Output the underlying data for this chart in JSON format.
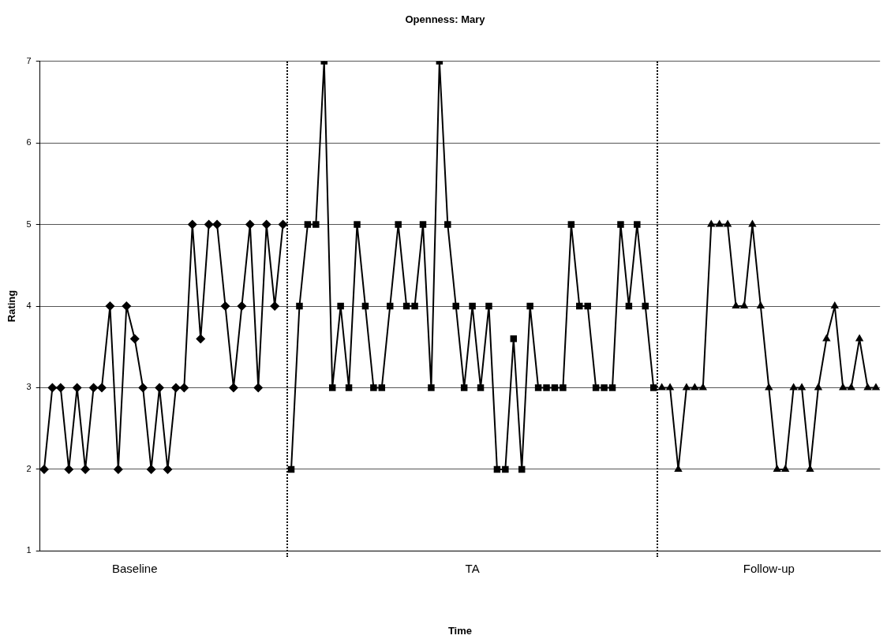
{
  "chart_data": {
    "type": "line",
    "title": "Openness: Mary",
    "xlabel": "Time",
    "ylabel": "Rating",
    "categories": [
      null,
      null,
      null,
      null,
      null,
      null,
      null,
      null,
      null,
      null,
      null,
      "Baseline",
      null,
      null,
      null,
      null,
      null,
      null,
      null,
      null,
      null,
      null,
      null,
      null,
      null,
      null,
      null,
      null,
      null,
      null,
      null,
      null,
      null,
      null,
      null,
      null,
      null,
      null,
      null,
      null,
      null,
      null,
      null,
      null,
      null,
      null,
      null,
      null,
      null,
      null,
      null,
      null,
      "TA",
      null,
      null,
      null,
      null,
      null,
      null,
      null,
      null,
      null,
      null,
      null,
      null,
      null,
      null,
      null,
      null,
      null,
      null,
      null,
      null,
      null,
      null,
      null,
      null,
      null,
      null,
      null,
      null,
      null,
      null,
      null,
      null,
      null,
      null,
      null,
      "Follow-up",
      null,
      null,
      null,
      null,
      null,
      null,
      null,
      null,
      null,
      null,
      null,
      null,
      null
    ],
    "ylim": [
      1,
      7
    ],
    "yticks": [
      1,
      2,
      3,
      4,
      5,
      6,
      7
    ],
    "grid": "y",
    "legend": false,
    "line_style": "solid",
    "series": [
      {
        "color": "#000000",
        "marker": "diamond",
        "values": [
          2,
          3,
          3,
          2,
          3,
          2,
          3,
          3,
          4,
          2,
          4,
          3.6,
          3,
          2,
          3,
          2,
          3,
          3,
          5,
          3.6,
          5,
          5,
          4,
          3,
          4,
          5,
          3,
          5,
          4,
          5,
          null,
          null,
          null,
          null,
          null,
          null,
          null,
          null,
          null,
          null,
          null,
          null,
          null,
          null,
          null,
          null,
          null,
          null,
          null,
          null,
          null,
          null,
          null,
          null,
          null,
          null,
          null,
          null,
          null,
          null,
          null,
          null,
          null,
          null,
          null,
          null,
          null,
          null,
          null,
          null,
          null,
          null,
          null,
          null,
          null,
          null,
          null,
          null,
          null,
          null,
          null,
          null,
          null,
          null,
          null,
          null,
          null,
          null,
          null,
          null,
          null,
          null,
          null,
          null,
          null,
          null,
          null,
          null,
          null,
          null,
          null,
          null
        ]
      },
      {
        "color": "#000000",
        "marker": "square",
        "values": [
          null,
          null,
          null,
          null,
          null,
          null,
          null,
          null,
          null,
          null,
          null,
          null,
          null,
          null,
          null,
          null,
          null,
          null,
          null,
          null,
          null,
          null,
          null,
          null,
          null,
          null,
          null,
          null,
          null,
          null,
          2,
          4,
          5,
          5,
          7,
          3,
          4,
          3,
          5,
          4,
          3,
          3,
          4,
          5,
          4,
          4,
          5,
          3,
          7,
          5,
          4,
          3,
          4,
          3,
          4,
          2,
          2,
          3.6,
          2,
          4,
          3,
          3,
          3,
          3,
          5,
          4,
          4,
          3,
          3,
          3,
          5,
          4,
          5,
          4,
          3,
          null,
          null,
          null,
          null,
          null,
          null,
          null,
          null,
          null,
          null,
          null,
          null,
          null,
          null,
          null,
          null,
          null,
          null,
          null,
          null,
          null,
          null,
          null,
          null,
          null,
          null,
          null
        ]
      },
      {
        "color": "#000000",
        "marker": "triangle",
        "values": [
          null,
          null,
          null,
          null,
          null,
          null,
          null,
          null,
          null,
          null,
          null,
          null,
          null,
          null,
          null,
          null,
          null,
          null,
          null,
          null,
          null,
          null,
          null,
          null,
          null,
          null,
          null,
          null,
          null,
          null,
          null,
          null,
          null,
          null,
          null,
          null,
          null,
          null,
          null,
          null,
          null,
          null,
          null,
          null,
          null,
          null,
          null,
          null,
          null,
          null,
          null,
          null,
          null,
          null,
          null,
          null,
          null,
          null,
          null,
          null,
          null,
          null,
          null,
          null,
          null,
          null,
          null,
          null,
          null,
          null,
          null,
          null,
          null,
          null,
          null,
          3,
          3,
          2,
          3,
          3,
          3,
          5,
          5,
          5,
          4,
          4,
          5,
          4,
          3,
          2,
          2,
          3,
          3,
          2,
          3,
          3.6,
          4,
          3,
          3,
          3.6,
          3,
          3
        ]
      }
    ]
  }
}
